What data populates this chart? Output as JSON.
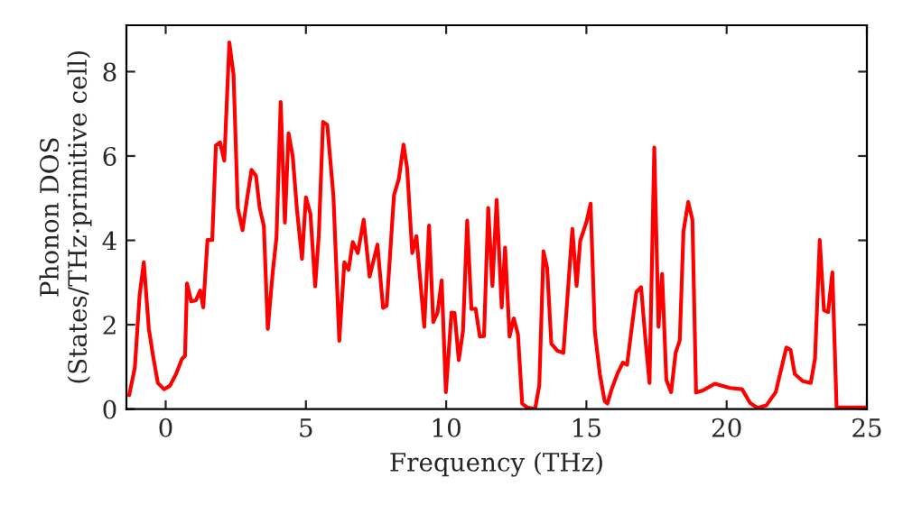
{
  "chart_data": {
    "type": "line",
    "xlabel": "Frequency (THz)",
    "ylabel": "Phonon DOS\n(States/THz·primitive cell)",
    "xlim": [
      -1.4,
      25
    ],
    "ylim": [
      0,
      9.1
    ],
    "xticks": [
      0,
      5,
      10,
      15,
      20,
      25
    ],
    "yticks": [
      0,
      2,
      4,
      6,
      8
    ],
    "grid": false,
    "marker": "none",
    "line_style": "solid",
    "series": [
      {
        "color": "#ff0000",
        "x": [
          -1.3,
          -1.1,
          -0.93,
          -0.78,
          -0.6,
          -0.45,
          -0.28,
          -0.06,
          0.15,
          0.37,
          0.58,
          0.69,
          0.76,
          0.91,
          1.08,
          1.23,
          1.34,
          1.49,
          1.66,
          1.79,
          1.94,
          2.09,
          2.27,
          2.42,
          2.57,
          2.74,
          2.9,
          3.06,
          3.22,
          3.35,
          3.5,
          3.64,
          3.82,
          3.95,
          4.1,
          4.25,
          4.38,
          4.53,
          4.68,
          4.86,
          5.0,
          5.16,
          5.33,
          5.46,
          5.61,
          5.76,
          5.98,
          6.19,
          6.37,
          6.52,
          6.67,
          6.85,
          7.06,
          7.27,
          7.55,
          7.75,
          7.88,
          8.14,
          8.31,
          8.48,
          8.61,
          8.79,
          8.94,
          9.22,
          9.39,
          9.54,
          9.69,
          9.84,
          9.99,
          10.19,
          10.3,
          10.45,
          10.6,
          10.75,
          10.9,
          11.05,
          11.2,
          11.35,
          11.5,
          11.65,
          11.8,
          11.98,
          12.1,
          12.26,
          12.41,
          12.56,
          12.71,
          12.88,
          13.17,
          13.32,
          13.47,
          13.6,
          13.75,
          13.97,
          14.18,
          14.36,
          14.5,
          14.65,
          14.78,
          15.0,
          15.15,
          15.3,
          15.48,
          15.65,
          15.75,
          15.9,
          16.12,
          16.3,
          16.45,
          16.6,
          16.78,
          16.95,
          17.1,
          17.25,
          17.42,
          17.57,
          17.7,
          17.85,
          18.02,
          18.18,
          18.33,
          18.46,
          18.63,
          18.78,
          18.91,
          19.15,
          19.58,
          20.12,
          20.55,
          20.84,
          21.1,
          21.42,
          21.75,
          22.13,
          22.28,
          22.43,
          22.72,
          23.0,
          23.15,
          23.32,
          23.47,
          23.62,
          23.77,
          23.92,
          24.98
        ],
        "values": [
          0.33,
          0.98,
          2.7,
          3.48,
          1.9,
          1.26,
          0.62,
          0.47,
          0.55,
          0.83,
          1.19,
          1.26,
          2.98,
          2.55,
          2.58,
          2.81,
          2.41,
          4.01,
          4.01,
          6.25,
          6.32,
          5.89,
          8.69,
          7.93,
          4.77,
          4.24,
          4.98,
          5.67,
          5.53,
          4.77,
          4.34,
          1.9,
          3.27,
          4.06,
          7.28,
          4.42,
          6.54,
          5.99,
          4.73,
          3.56,
          5.02,
          4.63,
          2.91,
          4.13,
          6.81,
          6.74,
          5.06,
          1.62,
          3.48,
          3.3,
          3.96,
          3.7,
          4.49,
          3.14,
          3.9,
          2.4,
          2.45,
          5.07,
          5.45,
          6.27,
          5.7,
          3.7,
          4.1,
          1.95,
          4.35,
          2.06,
          2.28,
          3.05,
          0.4,
          2.29,
          2.28,
          1.16,
          1.85,
          4.47,
          2.37,
          2.38,
          1.72,
          1.73,
          4.77,
          2.92,
          4.96,
          2.41,
          3.83,
          1.72,
          2.15,
          1.77,
          0.13,
          0.04,
          0.0,
          0.56,
          3.74,
          3.35,
          1.55,
          1.38,
          1.33,
          2.98,
          4.27,
          2.92,
          3.99,
          4.43,
          4.87,
          1.84,
          0.83,
          0.19,
          0.13,
          0.47,
          0.86,
          1.1,
          1.05,
          1.84,
          2.77,
          2.89,
          1.69,
          0.62,
          6.2,
          1.95,
          3.2,
          0.69,
          0.4,
          1.33,
          1.63,
          4.21,
          4.91,
          4.49,
          0.39,
          0.44,
          0.6,
          0.5,
          0.47,
          0.14,
          0.03,
          0.09,
          0.4,
          1.46,
          1.4,
          0.83,
          0.66,
          0.62,
          1.19,
          4.01,
          2.34,
          2.3,
          3.24,
          0.04,
          0.04
        ]
      }
    ]
  }
}
